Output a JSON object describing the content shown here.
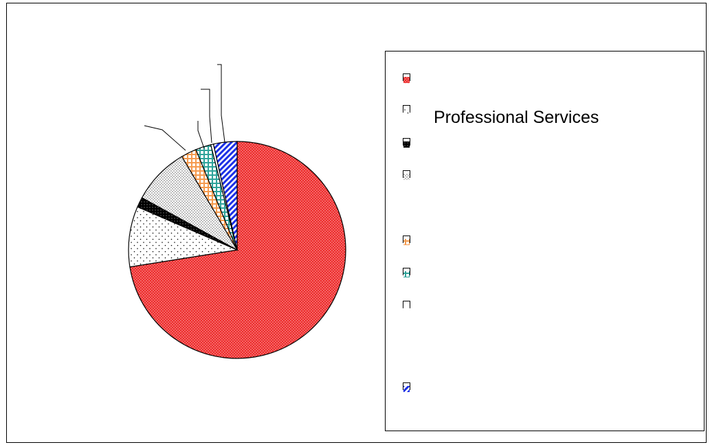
{
  "chart_data": {
    "type": "pie",
    "title": "",
    "slices": [
      {
        "label": "",
        "value": 72.5,
        "color": "#ee2a2a",
        "pattern": "dots-white"
      },
      {
        "label": "Professional Services",
        "value": 9.0,
        "color": "#ffffff",
        "pattern": "sparse-dots"
      },
      {
        "label": "",
        "value": 1.5,
        "color": "#000000",
        "pattern": "solid-black"
      },
      {
        "label": "",
        "value": 8.5,
        "color": "#ffffff",
        "pattern": "dense-dots"
      },
      {
        "label": "",
        "value": 2.3,
        "color": "#f59a4e",
        "pattern": "grid-orange"
      },
      {
        "label": "",
        "value": 2.3,
        "color": "#2fa39a",
        "pattern": "grid-teal"
      },
      {
        "label": "",
        "value": 0.4,
        "color": "#ffffff",
        "pattern": "none"
      },
      {
        "label": "",
        "value": 3.5,
        "color": "#1a2fe6",
        "pattern": "diag-blue"
      }
    ],
    "legend_position": "right",
    "legend": [
      {
        "label": ""
      },
      {
        "label": "Professional Services"
      },
      {
        "label": ""
      },
      {
        "label": ""
      },
      {
        "label": ""
      },
      {
        "label": ""
      },
      {
        "label": ""
      },
      {
        "label": ""
      }
    ]
  }
}
